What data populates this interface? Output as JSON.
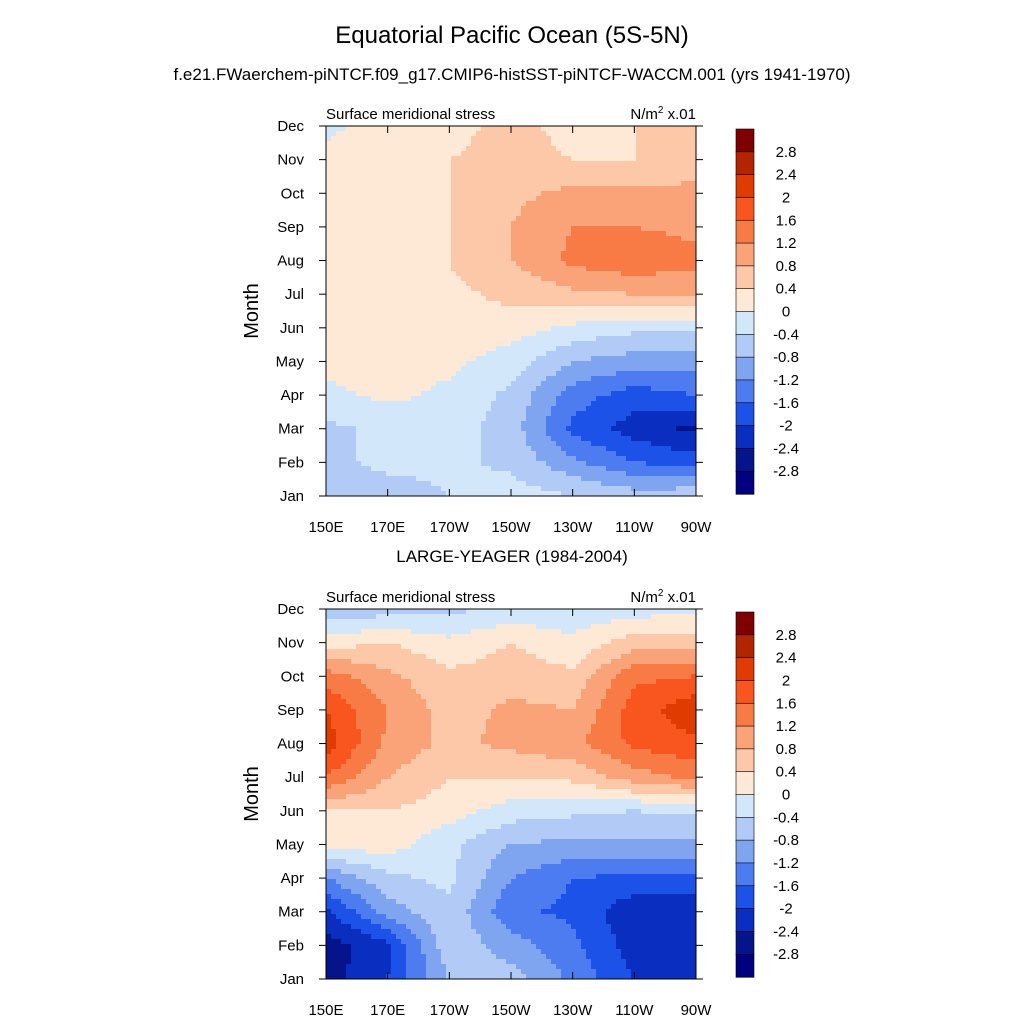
{
  "figure": {
    "title": "Equatorial Pacific Ocean (5S-5N)",
    "subtitle": "f.e21.FWaerchem-piNTCF.f09_g17.CMIP6-histSST-piNTCF-WACCM.001 (yrs 1941-1970)"
  },
  "colorbar": {
    "levels": [
      "2.8",
      "2.4",
      "2",
      "1.6",
      "1.2",
      "0.8",
      "0.4",
      "0",
      "-0.4",
      "-0.8",
      "-1.2",
      "-1.6",
      "-2",
      "-2.4",
      "-2.8"
    ],
    "colors": [
      "#7f0000",
      "#b32400",
      "#e03b00",
      "#f9551f",
      "#f87a44",
      "#fba378",
      "#fdc8a8",
      "#fee8d6",
      "#d3e7fb",
      "#b2cbf6",
      "#7fa4f0",
      "#4d7cf0",
      "#1c52e8",
      "#0a2ec0",
      "#05148a",
      "#000080"
    ]
  },
  "chart_data": [
    {
      "type": "heatmap",
      "title": "",
      "left_label": "Surface meridional stress",
      "units_label": "N/m",
      "units_sup": "2",
      "units_suffix": " x.01",
      "ylabel": "Month",
      "x": [
        "150E",
        "170E",
        "170W",
        "150W",
        "130W",
        "110W",
        "90W"
      ],
      "y": [
        "Jan",
        "Feb",
        "Mar",
        "Apr",
        "May",
        "Jun",
        "Jul",
        "Aug",
        "Sep",
        "Oct",
        "Nov",
        "Dec"
      ],
      "zlim": [
        -2.8,
        2.8
      ],
      "z": [
        [
          -0.6,
          -0.6,
          -0.4,
          -0.2,
          -0.4,
          -0.6,
          -0.5
        ],
        [
          -0.5,
          -0.3,
          -0.3,
          -0.5,
          -1.1,
          -1.6,
          -1.8
        ],
        [
          -0.5,
          -0.3,
          -0.2,
          -0.6,
          -1.7,
          -2.2,
          -2.5
        ],
        [
          -0.1,
          0.1,
          -0.1,
          -0.5,
          -1.4,
          -1.8,
          -1.6
        ],
        [
          0.1,
          0.2,
          0.1,
          -0.2,
          -0.8,
          -1.0,
          -1.0
        ],
        [
          0.2,
          0.3,
          0.3,
          0.2,
          -0.1,
          -0.3,
          -0.3
        ],
        [
          0.3,
          0.3,
          0.3,
          0.5,
          0.7,
          0.8,
          0.9
        ],
        [
          0.3,
          0.3,
          0.4,
          0.8,
          1.3,
          1.5,
          1.3
        ],
        [
          0.3,
          0.3,
          0.4,
          0.8,
          1.2,
          1.2,
          1.1
        ],
        [
          0.2,
          0.3,
          0.4,
          0.7,
          0.9,
          0.9,
          0.9
        ],
        [
          0.1,
          0.3,
          0.4,
          0.5,
          0.4,
          0.4,
          0.6
        ],
        [
          -0.1,
          0.2,
          0.3,
          0.5,
          0.3,
          0.4,
          0.5
        ]
      ]
    },
    {
      "type": "heatmap",
      "title": "LARGE-YEAGER (1984-2004)",
      "left_label": "Surface meridional stress",
      "units_label": "N/m",
      "units_sup": "2",
      "units_suffix": " x.01",
      "ylabel": "Month",
      "x": [
        "150E",
        "170E",
        "170W",
        "150W",
        "130W",
        "110W",
        "90W"
      ],
      "y": [
        "Jan",
        "Feb",
        "Mar",
        "Apr",
        "May",
        "Jun",
        "Jul",
        "Aug",
        "Sep",
        "Oct",
        "Nov",
        "Dec"
      ],
      "zlim": [
        -2.8,
        2.8
      ],
      "z": [
        [
          -2.6,
          -2.0,
          -0.8,
          -0.6,
          -1.3,
          -2.0,
          -2.4
        ],
        [
          -2.6,
          -2.1,
          -0.5,
          -1.0,
          -1.5,
          -2.2,
          -2.3
        ],
        [
          -2.1,
          -1.0,
          -0.5,
          -1.5,
          -1.7,
          -2.3,
          -2.4
        ],
        [
          -1.2,
          -0.5,
          -0.3,
          -1.2,
          -1.6,
          -1.7,
          -1.7
        ],
        [
          0.2,
          0.2,
          -0.3,
          -0.8,
          -0.9,
          -0.9,
          -0.9
        ],
        [
          0.4,
          0.4,
          0.2,
          -0.2,
          -0.3,
          -0.4,
          -0.3
        ],
        [
          1.6,
          0.8,
          0.4,
          0.4,
          0.5,
          1.0,
          1.3
        ],
        [
          2.2,
          1.1,
          0.7,
          0.9,
          1.1,
          1.7,
          1.9
        ],
        [
          2.0,
          1.2,
          0.6,
          0.9,
          0.8,
          1.8,
          2.3
        ],
        [
          1.4,
          0.9,
          0.5,
          0.6,
          0.5,
          1.5,
          1.6
        ],
        [
          0.2,
          0.4,
          0.1,
          0.4,
          0.1,
          0.6,
          0.6
        ],
        [
          -0.7,
          -0.6,
          -0.5,
          -0.3,
          -0.3,
          -0.2,
          -0.1
        ]
      ]
    }
  ]
}
